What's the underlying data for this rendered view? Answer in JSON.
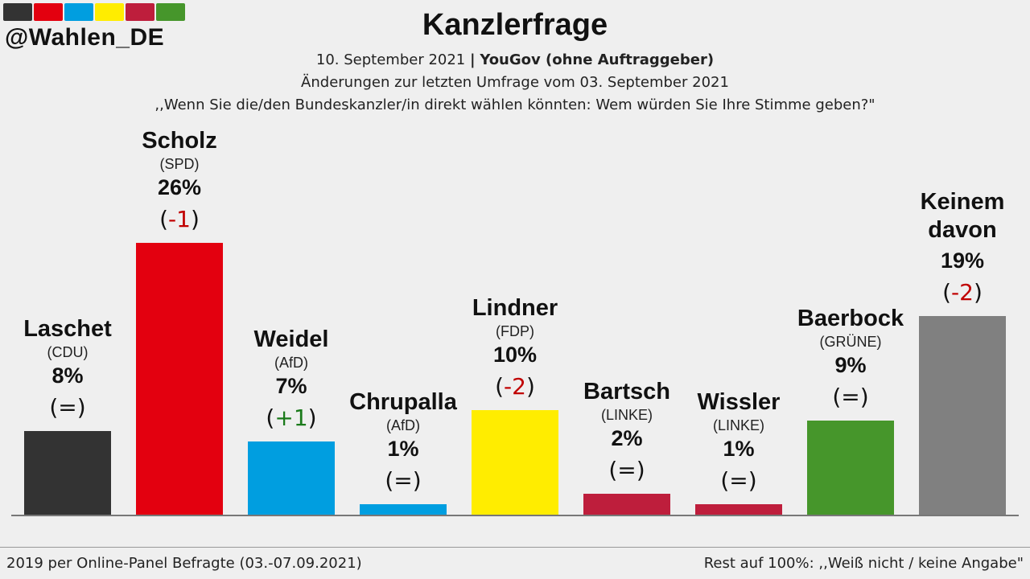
{
  "header": {
    "handle": "@Wahlen_DE",
    "title": "Kanzlerfrage",
    "date": "10. September 2021",
    "separator": "|",
    "pollster": "YouGov (ohne Auftraggeber)",
    "change_note": "Änderungen zur letzten Umfrage vom 03. September 2021",
    "question": ",,Wenn Sie die/den Bundeskanzler/in direkt wählen könnten: Wem würden Sie Ihre Stimme geben?\"",
    "swatch_colors": [
      "#333333",
      "#e3000f",
      "#009ee0",
      "#ffed00",
      "#be1e3c",
      "#46962b"
    ]
  },
  "footer": {
    "left": "2019 per Online-Panel Befragte (03.-07.09.2021)",
    "right": "Rest auf 100%: ,,Weiß nicht / keine Angabe\""
  },
  "chart_data": {
    "type": "bar",
    "ylim": [
      0,
      30
    ],
    "categories": [
      {
        "name": [
          "Laschet"
        ],
        "party": "(CDU)",
        "value": 8,
        "value_label": "8%",
        "change": "=",
        "change_sign": "neutral",
        "color": "#333333"
      },
      {
        "name": [
          "Scholz"
        ],
        "party": "(SPD)",
        "value": 26,
        "value_label": "26%",
        "change": "-1",
        "change_sign": "negative",
        "color": "#e3000f"
      },
      {
        "name": [
          "Weidel"
        ],
        "party": "(AfD)",
        "value": 7,
        "value_label": "7%",
        "change": "+1",
        "change_sign": "positive",
        "color": "#009ee0"
      },
      {
        "name": [
          "Chrupalla"
        ],
        "party": "(AfD)",
        "value": 1,
        "value_label": "1%",
        "change": "=",
        "change_sign": "neutral",
        "color": "#009ee0"
      },
      {
        "name": [
          "Lindner"
        ],
        "party": "(FDP)",
        "value": 10,
        "value_label": "10%",
        "change": "-2",
        "change_sign": "negative",
        "color": "#ffed00"
      },
      {
        "name": [
          "Bartsch"
        ],
        "party": "(LINKE)",
        "value": 2,
        "value_label": "2%",
        "change": "=",
        "change_sign": "neutral",
        "color": "#be1e3c"
      },
      {
        "name": [
          "Wissler"
        ],
        "party": "(LINKE)",
        "value": 1,
        "value_label": "1%",
        "change": "=",
        "change_sign": "neutral",
        "color": "#be1e3c"
      },
      {
        "name": [
          "Baerbock"
        ],
        "party": "(GRÜNE)",
        "value": 9,
        "value_label": "9%",
        "change": "=",
        "change_sign": "neutral",
        "color": "#46962b"
      },
      {
        "name": [
          "Keinem",
          "davon"
        ],
        "party": "",
        "value": 19,
        "value_label": "19%",
        "change": "-2",
        "change_sign": "negative",
        "color": "#808080"
      }
    ],
    "change_colors": {
      "negative": "#c00000",
      "positive": "#1a7a1a",
      "neutral": "#111111"
    }
  }
}
